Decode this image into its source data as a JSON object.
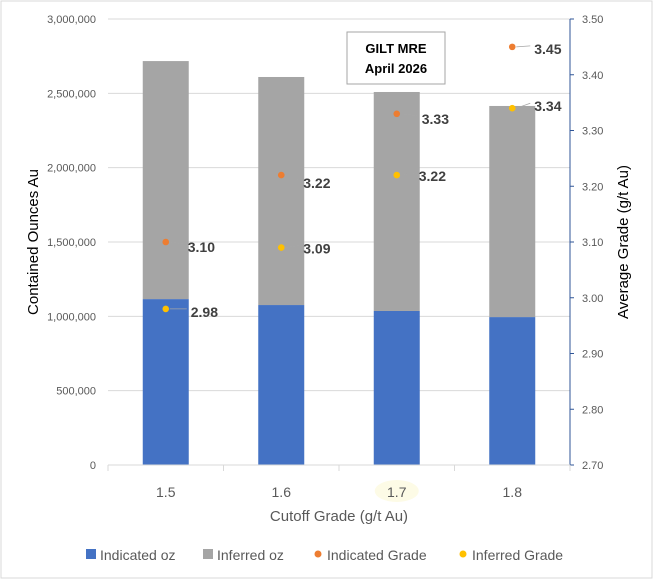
{
  "chart_data": {
    "type": "bar",
    "stacked": true,
    "categories": [
      "1.5",
      "1.6",
      "1.7",
      "1.8"
    ],
    "series": [
      {
        "name": "Indicated oz",
        "axis": "left",
        "kind": "bar",
        "color": "#4472c4",
        "values": [
          1116000,
          1076000,
          1036000,
          995000
        ]
      },
      {
        "name": "Inferred oz",
        "axis": "left",
        "kind": "bar",
        "color": "#a5a5a5",
        "values": [
          1601000,
          1534000,
          1473000,
          1420000
        ]
      },
      {
        "name": "Indicated Grade",
        "axis": "right",
        "kind": "scatter",
        "color": "#ed7d31",
        "values": [
          3.1,
          3.22,
          3.33,
          3.45
        ],
        "labels": [
          "3.10",
          "3.22",
          "3.33",
          "3.45"
        ]
      },
      {
        "name": "Inferred Grade",
        "axis": "right",
        "kind": "scatter",
        "color": "#ffc000",
        "values": [
          2.98,
          3.09,
          3.22,
          3.34
        ],
        "labels": [
          "2.98",
          "3.09",
          "3.22",
          "3.34"
        ]
      }
    ],
    "xlabel": "Cutoff Grade (g/t Au)",
    "ylabel": "Contained Ounces Au",
    "y2label": "Average Grade (g/t Au)",
    "ylim": [
      0,
      3000000
    ],
    "y2lim": [
      2.7,
      3.5
    ],
    "yticks": [
      "0",
      "500,000",
      "1,000,000",
      "1,500,000",
      "2,000,000",
      "2,500,000",
      "3,000,000"
    ],
    "y2ticks": [
      "2.70",
      "2.80",
      "2.90",
      "3.00",
      "3.10",
      "3.20",
      "3.30",
      "3.40",
      "3.50"
    ],
    "grid": true,
    "legend_position": "bottom",
    "annotation": {
      "line1": "GILT MRE",
      "line2": "April 2026"
    }
  }
}
